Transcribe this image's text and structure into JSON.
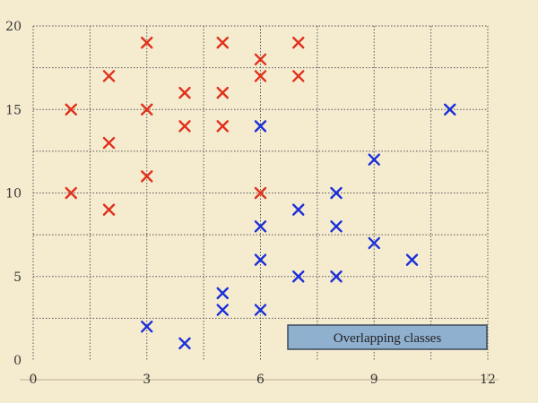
{
  "chart_data": {
    "type": "scatter",
    "title": "",
    "xlabel": "",
    "ylabel": "",
    "xlim": [
      0,
      12
    ],
    "ylim": [
      0,
      20
    ],
    "x_ticks": [
      0,
      3,
      6,
      9,
      12
    ],
    "y_ticks": [
      0,
      5,
      10,
      15,
      20
    ],
    "grid": true,
    "marker": "x",
    "series": [
      {
        "color": "#e0301c",
        "points": [
          [
            1,
            15
          ],
          [
            1,
            10
          ],
          [
            2,
            17
          ],
          [
            2,
            13
          ],
          [
            2,
            9
          ],
          [
            3,
            19
          ],
          [
            3,
            15
          ],
          [
            3,
            11
          ],
          [
            4,
            16
          ],
          [
            4,
            14
          ],
          [
            5,
            19
          ],
          [
            5,
            16
          ],
          [
            5,
            14
          ],
          [
            6,
            18
          ],
          [
            6,
            17
          ],
          [
            6,
            10
          ],
          [
            7,
            19
          ],
          [
            7,
            17
          ]
        ]
      },
      {
        "color": "#1c2fd8",
        "points": [
          [
            3,
            2
          ],
          [
            4,
            1
          ],
          [
            5,
            4
          ],
          [
            5,
            3
          ],
          [
            6,
            14
          ],
          [
            6,
            8
          ],
          [
            6,
            6
          ],
          [
            6,
            3
          ],
          [
            7,
            9
          ],
          [
            7,
            5
          ],
          [
            8,
            10
          ],
          [
            8,
            8
          ],
          [
            8,
            5
          ],
          [
            9,
            12
          ],
          [
            9,
            7
          ],
          [
            10,
            6
          ],
          [
            11,
            15
          ]
        ]
      }
    ],
    "annotation": "Overlapping classes"
  }
}
